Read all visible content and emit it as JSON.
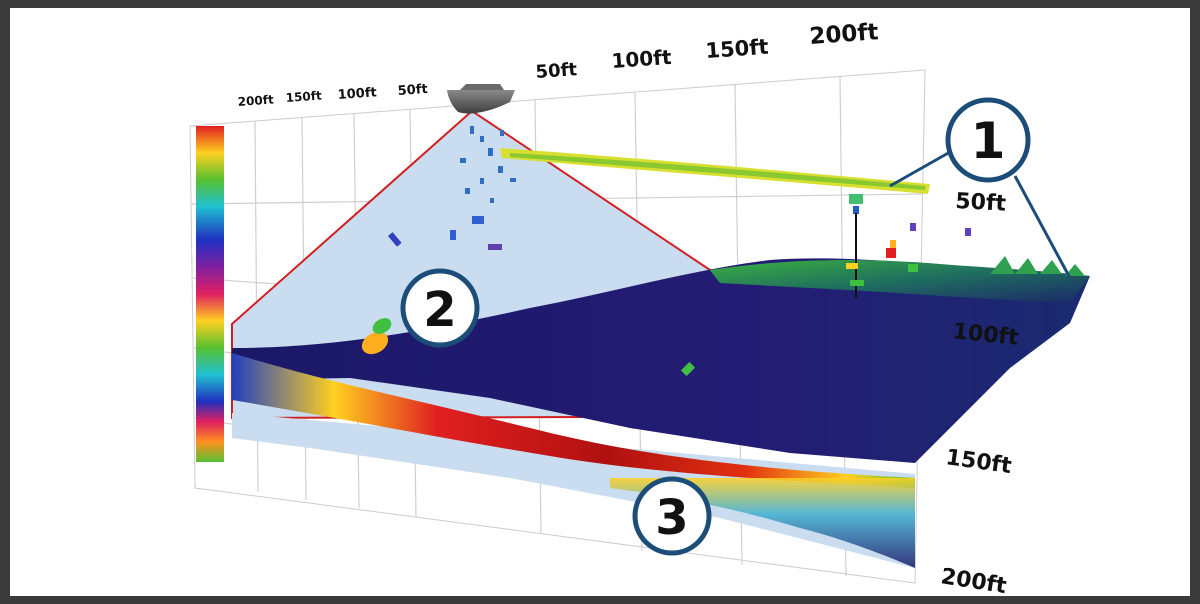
{
  "scale_labels": {
    "left": [
      "200ft",
      "150ft",
      "100ft",
      "50ft"
    ],
    "right": [
      "50ft",
      "100ft",
      "150ft",
      "200ft"
    ],
    "depth": [
      "50ft",
      "100ft",
      "150ft",
      "200ft"
    ]
  },
  "callouts": [
    "1",
    "2",
    "3"
  ],
  "colors": {
    "grid": "#c8c8c8",
    "cone_line": "#d22020",
    "cone_fill": "#c9dcf0",
    "callout_ring": "#1c4d78",
    "bottom_dark": "#1b1868"
  },
  "icons": {
    "boat": "boat-icon",
    "color_scale": "color-scale-bar"
  }
}
